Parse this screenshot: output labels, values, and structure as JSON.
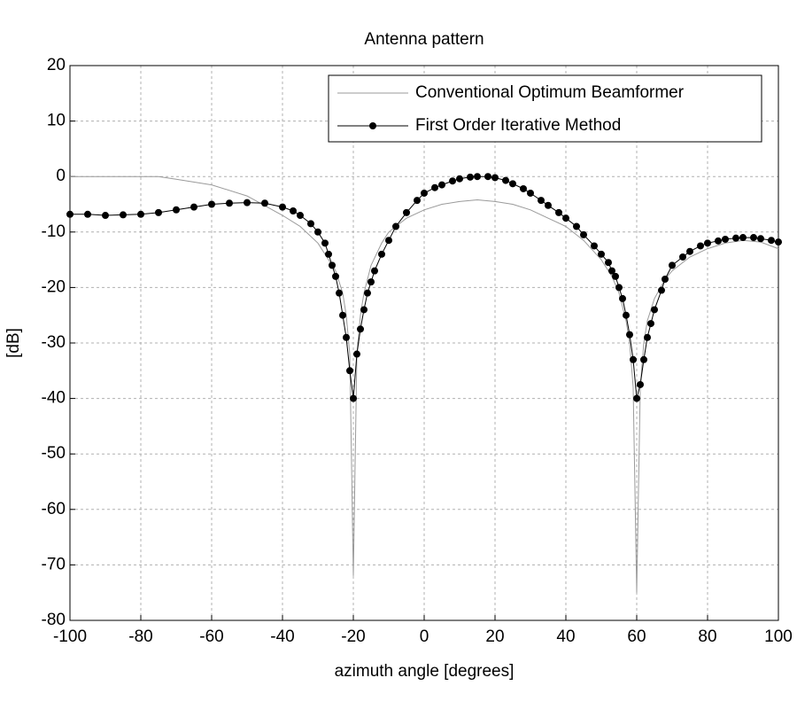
{
  "chart_data": {
    "type": "line",
    "title": "Antenna pattern",
    "x_label": "azimuth angle [degrees]",
    "y_label": "[dB]",
    "xlim": [
      -100,
      100
    ],
    "xticks": [
      -100,
      -80,
      -60,
      -40,
      -20,
      0,
      20,
      40,
      60,
      80,
      100
    ],
    "ylim": [
      -80,
      20
    ],
    "yticks": [
      -80,
      -70,
      -60,
      -50,
      -40,
      -30,
      -20,
      -10,
      0,
      10,
      20
    ],
    "grid": true,
    "legend": "upper right",
    "series": [
      {
        "name": "Conventional Optimum Beamformer",
        "color": "#9a9a9a",
        "marker": "none",
        "x": [
          -100,
          -90,
          -80,
          -75,
          -70,
          -60,
          -50,
          -40,
          -35,
          -30,
          -27,
          -25,
          -23,
          -22,
          -21,
          -20,
          -19,
          -18,
          -17,
          -15,
          -12,
          -10,
          -5,
          0,
          5,
          10,
          15,
          20,
          25,
          30,
          35,
          40,
          45,
          50,
          53,
          55,
          57,
          58,
          59,
          60,
          61,
          62,
          63,
          65,
          68,
          70,
          75,
          80,
          85,
          90,
          95,
          100
        ],
        "values": [
          0,
          0,
          0,
          0,
          -0.5,
          -1.5,
          -3.5,
          -7,
          -9,
          -12,
          -15,
          -17,
          -21,
          -25,
          -32,
          -72,
          -32,
          -25,
          -21,
          -16,
          -12,
          -10,
          -7.5,
          -6,
          -5,
          -4.5,
          -4.2,
          -4.5,
          -5,
          -6,
          -7.5,
          -9,
          -11.5,
          -15,
          -18,
          -21,
          -26,
          -30,
          -38,
          -75,
          -38,
          -30,
          -26,
          -22,
          -18.5,
          -17,
          -14.5,
          -13,
          -12,
          -11.5,
          -11.8,
          -13
        ]
      },
      {
        "name": "First Order Iterative Method",
        "color": "#000000",
        "marker": "o",
        "x": [
          -100,
          -95,
          -90,
          -85,
          -80,
          -75,
          -70,
          -65,
          -60,
          -55,
          -50,
          -45,
          -40,
          -37,
          -35,
          -32,
          -30,
          -28,
          -27,
          -26,
          -25,
          -24,
          -23,
          -22,
          -21,
          -20,
          -19,
          -18,
          -17,
          -16,
          -15,
          -14,
          -12,
          -10,
          -8,
          -5,
          -2,
          0,
          3,
          5,
          8,
          10,
          13,
          15,
          18,
          20,
          23,
          25,
          28,
          30,
          33,
          35,
          38,
          40,
          43,
          45,
          48,
          50,
          52,
          53,
          54,
          55,
          56,
          57,
          58,
          59,
          60,
          61,
          62,
          63,
          64,
          65,
          67,
          68,
          70,
          73,
          75,
          78,
          80,
          83,
          85,
          88,
          90,
          93,
          95,
          98,
          100
        ],
        "values": [
          -6.8,
          -6.8,
          -7,
          -6.9,
          -6.8,
          -6.5,
          -6,
          -5.5,
          -5,
          -4.8,
          -4.7,
          -4.8,
          -5.5,
          -6.2,
          -7,
          -8.5,
          -10,
          -12,
          -14,
          -16,
          -18,
          -21,
          -25,
          -29,
          -35,
          -40,
          -32,
          -27.5,
          -24,
          -21,
          -19,
          -17,
          -14,
          -11.5,
          -9,
          -6.5,
          -4.3,
          -3,
          -2,
          -1.5,
          -0.8,
          -0.4,
          -0.1,
          0,
          0,
          -0.2,
          -0.7,
          -1.3,
          -2.2,
          -3,
          -4.3,
          -5.2,
          -6.5,
          -7.5,
          -9,
          -10.5,
          -12.5,
          -14,
          -15.5,
          -17,
          -18,
          -20,
          -22,
          -25,
          -28.5,
          -33,
          -40,
          -37.5,
          -33,
          -29,
          -26.5,
          -24,
          -20.5,
          -18.5,
          -16,
          -14.5,
          -13.5,
          -12.5,
          -12,
          -11.6,
          -11.3,
          -11.1,
          -11,
          -11,
          -11.2,
          -11.5,
          -11.8
        ]
      }
    ]
  }
}
